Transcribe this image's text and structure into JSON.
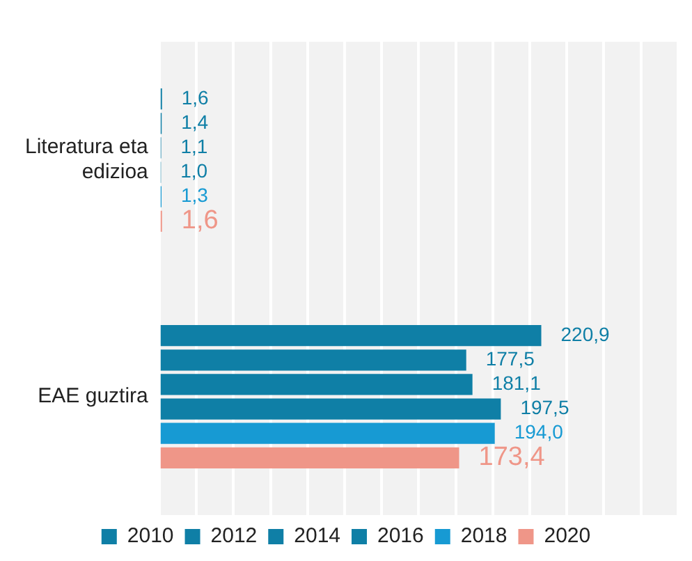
{
  "chart_data": {
    "type": "bar",
    "orientation": "horizontal",
    "categories": [
      "Literatura eta edizioa",
      "EAE guztira"
    ],
    "series": [
      {
        "name": "2010",
        "color": "#0f7fa6",
        "values": [
          1.6,
          220.9
        ],
        "value_labels": [
          "1,6",
          "220,9"
        ]
      },
      {
        "name": "2012",
        "color": "#0f7fa6",
        "values": [
          1.4,
          177.5
        ],
        "value_labels": [
          "1,4",
          "177,5"
        ]
      },
      {
        "name": "2014",
        "color": "#0f7fa6",
        "values": [
          1.1,
          181.1
        ],
        "value_labels": [
          "1,1",
          "181,1"
        ]
      },
      {
        "name": "2016",
        "color": "#0f7fa6",
        "values": [
          1.0,
          197.5
        ],
        "value_labels": [
          "1,0",
          "197,5"
        ]
      },
      {
        "name": "2018",
        "color": "#179ad3",
        "values": [
          1.3,
          194.0
        ],
        "value_labels": [
          "1,3",
          "194,0"
        ]
      },
      {
        "name": "2020",
        "color": "#ef9688",
        "values": [
          1.6,
          173.4
        ],
        "value_labels": [
          "1,6",
          "173,4"
        ]
      }
    ],
    "xlim": [
      0,
      300
    ],
    "xticks": [
      {
        "value": 0,
        "label": null
      },
      {
        "value": 21.4,
        "label": null
      },
      {
        "value": 42.9,
        "label": null
      },
      {
        "value": 64.3,
        "label": null
      },
      {
        "value": 85.7,
        "label": null
      },
      {
        "value": 107.1,
        "label": null
      },
      {
        "value": 128.6,
        "label": null
      },
      {
        "value": 150,
        "label": null
      },
      {
        "value": 171.4,
        "label": null
      },
      {
        "value": 192.9,
        "label": null
      },
      {
        "value": 214.3,
        "label": null
      },
      {
        "value": 235.7,
        "label": null
      },
      {
        "value": 257.1,
        "label": null
      },
      {
        "value": 278.6,
        "label": null
      },
      {
        "value": 300,
        "label": null
      }
    ],
    "tick_labels": "y",
    "grid": "x",
    "legend": "bottom"
  }
}
